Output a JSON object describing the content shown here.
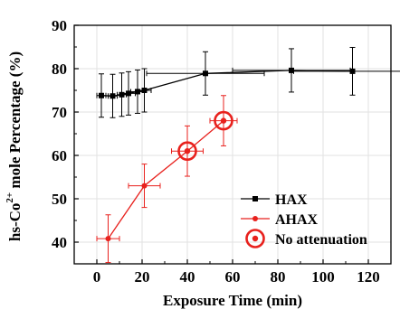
{
  "chart_data": {
    "type": "line",
    "xlabel": "Exposure Time (min)",
    "ylabel_prefix": "hs-Co",
    "ylabel_sup": "2+",
    "ylabel_suffix": " mole Percentage (%)",
    "xlim": [
      -10,
      130
    ],
    "ylim": [
      35,
      90
    ],
    "x_ticks": [
      0,
      20,
      40,
      60,
      80,
      100,
      120
    ],
    "y_ticks": [
      40,
      50,
      60,
      70,
      80,
      90
    ],
    "grid": true,
    "legend_position": "bottom-right",
    "series": [
      {
        "name": "HAX",
        "color": "#000000",
        "marker": "square",
        "points": [
          {
            "x": 2,
            "y": 73.8,
            "xerr": 2,
            "yerr": 5
          },
          {
            "x": 7,
            "y": 73.7,
            "xerr": 2,
            "yerr": 5
          },
          {
            "x": 11,
            "y": 74.0,
            "xerr": 2,
            "yerr": 5
          },
          {
            "x": 14,
            "y": 74.3,
            "xerr": 3,
            "yerr": 5
          },
          {
            "x": 18,
            "y": 74.7,
            "xerr": 3,
            "yerr": 5
          },
          {
            "x": 21,
            "y": 75.0,
            "xerr": 3,
            "yerr": 5
          },
          {
            "x": 48,
            "y": 78.9,
            "xerr": 26,
            "yerr": 5
          },
          {
            "x": 86,
            "y": 79.6,
            "xerr": 26,
            "yerr": 5
          },
          {
            "x": 113,
            "y": 79.4,
            "xerr": 26,
            "yerr": 5.5
          }
        ]
      },
      {
        "name": "AHAX",
        "color": "#e8211d",
        "marker": "circle",
        "points": [
          {
            "x": 5,
            "y": 40.8,
            "xerr": 5,
            "yerr": 5.5
          },
          {
            "x": 21,
            "y": 53.0,
            "xerr": 7,
            "yerr": 5
          },
          {
            "x": 40,
            "y": 61.0,
            "xerr": 7,
            "yerr": 5.8
          },
          {
            "x": 56,
            "y": 68.0,
            "xerr": 6,
            "yerr": 5.8
          }
        ]
      },
      {
        "name": "No attenuation",
        "color": "#e8211d",
        "marker": "target",
        "points": [
          {
            "x": 40,
            "y": 61.0
          },
          {
            "x": 56,
            "y": 68.0
          }
        ]
      }
    ]
  }
}
